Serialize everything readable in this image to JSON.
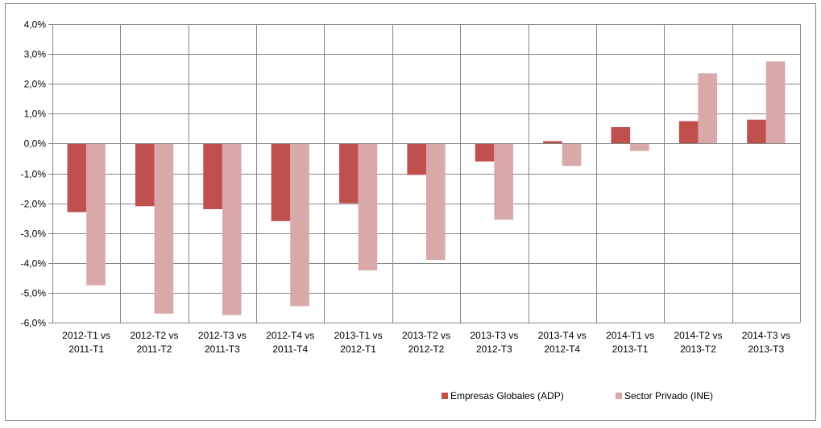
{
  "chart_data": {
    "type": "bar",
    "categories": [
      [
        "2012-T1 vs",
        "2011-T1"
      ],
      [
        "2012-T2 vs",
        "2011-T2"
      ],
      [
        "2012-T3 vs",
        "2011-T3"
      ],
      [
        "2012-T4 vs",
        "2011-T4"
      ],
      [
        "2013-T1 vs",
        "2012-T1"
      ],
      [
        "2013-T2 vs",
        "2012-T2"
      ],
      [
        "2013-T3 vs",
        "2012-T3"
      ],
      [
        "2013-T4 vs",
        "2012-T4"
      ],
      [
        "2014-T1 vs",
        "2013-T1"
      ],
      [
        "2014-T2 vs",
        "2013-T2"
      ],
      [
        "2014-T3 vs",
        "2013-T3"
      ]
    ],
    "series": [
      {
        "name": "Empresas Globales (ADP)",
        "color": "#c0504d",
        "values": [
          -2.3,
          -2.1,
          -2.2,
          -2.6,
          -2.0,
          -1.05,
          -0.6,
          0.08,
          0.55,
          0.75,
          0.8
        ]
      },
      {
        "name": "Sector Privado (INE)",
        "color": "#d9a9aa",
        "values": [
          -4.75,
          -5.7,
          -5.75,
          -5.45,
          -4.25,
          -3.9,
          -2.55,
          -0.75,
          -0.25,
          2.35,
          2.75
        ]
      }
    ],
    "title": "",
    "xlabel": "",
    "ylabel": "",
    "ylim": [
      -6,
      4
    ],
    "yticks": [
      4,
      3,
      2,
      1,
      0,
      -1,
      -2,
      -3,
      -4,
      -5,
      -6
    ],
    "ytick_labels": [
      "4,0%",
      "3,0%",
      "2,0%",
      "1,0%",
      "0,0%",
      "-1,0%",
      "-2,0%",
      "-3,0%",
      "-4,0%",
      "-5,0%",
      "-6,0%"
    ],
    "grid": true,
    "legend_position": "bottom-right"
  }
}
